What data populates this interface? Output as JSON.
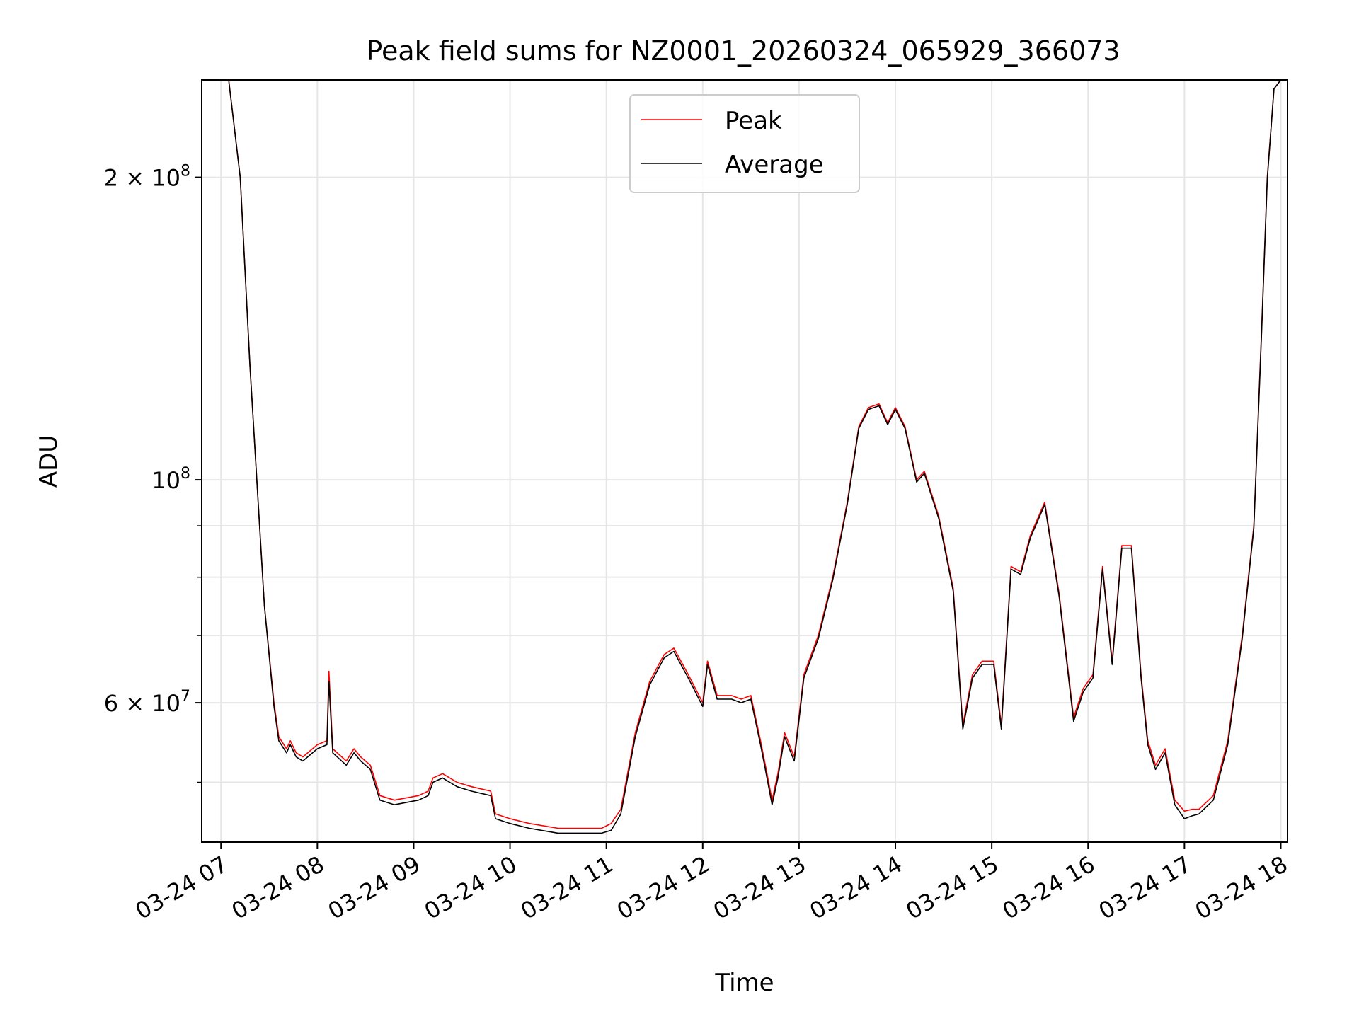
{
  "chart_data": {
    "type": "line",
    "title": "Peak field sums for NZ0001_20260324_065929_366073",
    "xlabel": "Time",
    "ylabel": "ADU",
    "yscale": "log",
    "xlim": [
      6.8,
      18.07
    ],
    "ylim": [
      43600000,
      250000000
    ],
    "grid": true,
    "legend_position": "top-center",
    "x_ticks": [
      {
        "value": 7,
        "label": "03-24 07"
      },
      {
        "value": 8,
        "label": "03-24 08"
      },
      {
        "value": 9,
        "label": "03-24 09"
      },
      {
        "value": 10,
        "label": "03-24 10"
      },
      {
        "value": 11,
        "label": "03-24 11"
      },
      {
        "value": 12,
        "label": "03-24 12"
      },
      {
        "value": 13,
        "label": "03-24 13"
      },
      {
        "value": 14,
        "label": "03-24 14"
      },
      {
        "value": 15,
        "label": "03-24 15"
      },
      {
        "value": 16,
        "label": "03-24 16"
      },
      {
        "value": 17,
        "label": "03-24 17"
      },
      {
        "value": 18,
        "label": "03-24 18"
      }
    ],
    "y_major_ticks": [
      {
        "value": 60000000,
        "base": "6 × 10",
        "exp": "7"
      },
      {
        "value": 100000000,
        "base": "10",
        "exp": "8"
      },
      {
        "value": 200000000,
        "base": "2 × 10",
        "exp": "8"
      }
    ],
    "y_minor_ticks": [
      50000000,
      70000000,
      80000000,
      90000000
    ],
    "series": [
      {
        "name": "Peak",
        "color": "#ff0000",
        "x": [
          7.0,
          7.08,
          7.2,
          7.3,
          7.45,
          7.55,
          7.6,
          7.68,
          7.72,
          7.78,
          7.85,
          8.0,
          8.1,
          8.12,
          8.16,
          8.3,
          8.38,
          8.45,
          8.55,
          8.65,
          8.8,
          9.05,
          9.15,
          9.2,
          9.3,
          9.45,
          9.6,
          9.8,
          9.85,
          10.0,
          10.2,
          10.5,
          10.8,
          10.95,
          11.05,
          11.15,
          11.3,
          11.45,
          11.6,
          11.7,
          11.85,
          12.0,
          12.05,
          12.15,
          12.3,
          12.4,
          12.5,
          12.6,
          12.65,
          12.72,
          12.78,
          12.85,
          12.95,
          13.05,
          13.2,
          13.35,
          13.5,
          13.62,
          13.72,
          13.83,
          13.92,
          14.0,
          14.1,
          14.22,
          14.3,
          14.45,
          14.6,
          14.7,
          14.8,
          14.9,
          15.02,
          15.1,
          15.2,
          15.3,
          15.4,
          15.55,
          15.7,
          15.85,
          15.95,
          16.05,
          16.15,
          16.25,
          16.35,
          16.45,
          16.55,
          16.62,
          16.7,
          16.8,
          16.9,
          17.0,
          17.08,
          17.15,
          17.3,
          17.45,
          17.6,
          17.72,
          17.8,
          17.86,
          17.93,
          18.0
        ],
        "y": [
          250000000,
          250000000,
          200000000,
          130000000,
          75000000,
          60000000,
          55500000,
          54000000,
          55000000,
          53500000,
          53000000,
          54500000,
          55000000,
          64500000,
          54000000,
          52500000,
          54000000,
          53000000,
          52000000,
          48500000,
          48000000,
          48500000,
          49000000,
          50500000,
          51000000,
          50000000,
          49500000,
          49000000,
          46500000,
          46000000,
          45500000,
          45000000,
          45000000,
          45000000,
          45500000,
          47000000,
          56000000,
          63000000,
          67000000,
          68000000,
          64000000,
          60000000,
          66000000,
          61000000,
          61000000,
          60500000,
          61000000,
          55000000,
          52000000,
          48000000,
          51000000,
          56000000,
          53000000,
          64000000,
          70000000,
          80000000,
          95000000,
          113000000,
          118000000,
          119000000,
          114000000,
          118000000,
          113000000,
          100000000,
          102000000,
          92000000,
          78000000,
          57000000,
          64000000,
          66000000,
          66000000,
          57000000,
          82000000,
          81000000,
          88000000,
          95000000,
          77000000,
          58000000,
          62000000,
          64000000,
          82000000,
          66000000,
          86000000,
          86000000,
          64000000,
          55000000,
          52000000,
          54000000,
          48000000,
          46800000,
          47000000,
          47000000,
          48500000,
          55000000,
          70000000,
          90000000,
          140000000,
          200000000,
          245000000,
          250000000
        ]
      },
      {
        "name": "Average",
        "color": "#000000",
        "x": [
          7.0,
          7.08,
          7.2,
          7.3,
          7.45,
          7.55,
          7.6,
          7.68,
          7.72,
          7.78,
          7.85,
          8.0,
          8.1,
          8.12,
          8.16,
          8.3,
          8.38,
          8.45,
          8.55,
          8.65,
          8.8,
          9.05,
          9.15,
          9.2,
          9.3,
          9.45,
          9.6,
          9.8,
          9.85,
          10.0,
          10.2,
          10.5,
          10.8,
          10.95,
          11.05,
          11.15,
          11.3,
          11.45,
          11.6,
          11.7,
          11.85,
          12.0,
          12.05,
          12.15,
          12.3,
          12.4,
          12.5,
          12.6,
          12.65,
          12.72,
          12.78,
          12.85,
          12.95,
          13.05,
          13.2,
          13.35,
          13.5,
          13.62,
          13.72,
          13.83,
          13.92,
          14.0,
          14.1,
          14.22,
          14.3,
          14.45,
          14.6,
          14.7,
          14.8,
          14.9,
          15.02,
          15.1,
          15.2,
          15.3,
          15.4,
          15.55,
          15.7,
          15.85,
          15.95,
          16.05,
          16.15,
          16.25,
          16.35,
          16.45,
          16.55,
          16.62,
          16.7,
          16.8,
          16.9,
          17.0,
          17.08,
          17.15,
          17.3,
          17.45,
          17.6,
          17.72,
          17.8,
          17.86,
          17.93,
          18.0
        ],
        "y": [
          250000000,
          250000000,
          200000000,
          130000000,
          75000000,
          59500000,
          55000000,
          53500000,
          54500000,
          53000000,
          52500000,
          54000000,
          54500000,
          63000000,
          53500000,
          52000000,
          53500000,
          52500000,
          51500000,
          48000000,
          47500000,
          48000000,
          48500000,
          50000000,
          50500000,
          49500000,
          49000000,
          48500000,
          46000000,
          45500000,
          45000000,
          44500000,
          44500000,
          44500000,
          44800000,
          46500000,
          55500000,
          62500000,
          66500000,
          67500000,
          63500000,
          59500000,
          65500000,
          60500000,
          60500000,
          60000000,
          60500000,
          54500000,
          51500000,
          47500000,
          50500000,
          55500000,
          52500000,
          63500000,
          69500000,
          79500000,
          94500000,
          112500000,
          117500000,
          118500000,
          113500000,
          117500000,
          112500000,
          99500000,
          101500000,
          91500000,
          77500000,
          56500000,
          63500000,
          65500000,
          65500000,
          56500000,
          81500000,
          80500000,
          87500000,
          94500000,
          76500000,
          57500000,
          61500000,
          63500000,
          81500000,
          65500000,
          85500000,
          85500000,
          63500000,
          54500000,
          51500000,
          53500000,
          47500000,
          46000000,
          46300000,
          46500000,
          48000000,
          54500000,
          69500000,
          89500000,
          139000000,
          199000000,
          245000000,
          250000000
        ]
      }
    ]
  }
}
